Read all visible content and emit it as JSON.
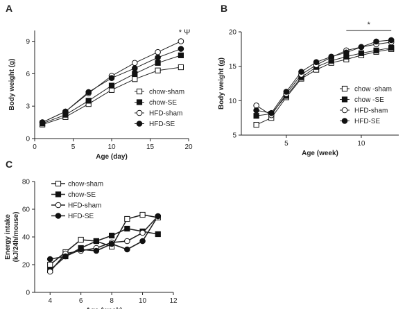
{
  "chart_data": [
    {
      "panel": "A",
      "type": "line",
      "xlabel": "Age (day)",
      "ylabel": "Body weight (g)",
      "xlim": [
        0,
        20
      ],
      "ylim": [
        0,
        10
      ],
      "xticks": [
        0,
        5,
        10,
        15,
        20
      ],
      "yticks": [
        0,
        3,
        6,
        9
      ],
      "legend_position": "lower-right",
      "annotation": "* Ψ",
      "x": [
        1,
        4,
        7,
        10,
        13,
        16,
        19
      ],
      "series": [
        {
          "name": "chow-sham",
          "marker": "open-square",
          "values": [
            1.3,
            2.0,
            3.2,
            4.5,
            5.5,
            6.3,
            6.6
          ]
        },
        {
          "name": "chow-SE",
          "marker": "filled-square",
          "values": [
            1.4,
            2.2,
            3.5,
            4.9,
            6.0,
            7.0,
            7.7
          ]
        },
        {
          "name": "HFD-sham",
          "marker": "open-circle",
          "values": [
            1.5,
            2.5,
            4.2,
            5.8,
            7.0,
            8.0,
            9.0
          ]
        },
        {
          "name": "HFD-SE",
          "marker": "filled-circle",
          "values": [
            1.5,
            2.5,
            4.3,
            5.6,
            6.5,
            7.5,
            8.3
          ]
        }
      ]
    },
    {
      "panel": "B",
      "type": "line",
      "xlabel": "Age (week)",
      "ylabel": "Body weight (g)",
      "xlim": [
        2,
        12.5
      ],
      "ylim": [
        5,
        20
      ],
      "xticks": [
        5,
        10
      ],
      "yticks": [
        5,
        10,
        15,
        20
      ],
      "legend_position": "lower-right",
      "annotation": "*",
      "annotation_span": [
        9,
        12
      ],
      "x": [
        3,
        4,
        5,
        6,
        7,
        8,
        9,
        10,
        11,
        12
      ],
      "series": [
        {
          "name": "chow -sham",
          "marker": "open-square",
          "values": [
            6.5,
            7.5,
            10.5,
            13.2,
            14.5,
            15.5,
            16.0,
            16.6,
            17.1,
            17.5
          ]
        },
        {
          "name": "chow -SE",
          "marker": "filled-square",
          "values": [
            7.8,
            8.1,
            10.7,
            13.4,
            14.9,
            15.8,
            16.4,
            16.9,
            17.3,
            17.7
          ]
        },
        {
          "name": "HFD-sham",
          "marker": "open-circle",
          "values": [
            9.3,
            7.9,
            11.0,
            13.8,
            15.2,
            16.3,
            17.3,
            17.8,
            18.2,
            18.5
          ]
        },
        {
          "name": "HFD-SE",
          "marker": "filled-circle",
          "values": [
            8.6,
            8.2,
            11.3,
            14.2,
            15.6,
            16.4,
            17.0,
            17.8,
            18.6,
            18.8
          ]
        }
      ]
    },
    {
      "panel": "C",
      "type": "line",
      "xlabel": "Age (week)",
      "ylabel": "Energy intake (kJ/24h/mouse)",
      "ylabel_lines": [
        "Energy intake",
        "(kJ/24h/mouse)"
      ],
      "xlim": [
        3,
        12
      ],
      "ylim": [
        0,
        80
      ],
      "xticks": [
        4,
        6,
        8,
        10,
        12
      ],
      "yticks": [
        0,
        20,
        40,
        60,
        80
      ],
      "legend_position": "upper-left",
      "x": [
        4,
        5,
        6,
        7,
        8,
        9,
        10,
        11
      ],
      "series": [
        {
          "name": "chow-sham",
          "marker": "open-square",
          "values": [
            20,
            29,
            38,
            37,
            33,
            53,
            56,
            54
          ]
        },
        {
          "name": "chow-SE",
          "marker": "filled-square",
          "values": [
            16,
            26,
            32,
            37,
            41,
            46,
            44,
            42
          ]
        },
        {
          "name": "HFD-sham",
          "marker": "open-circle",
          "values": [
            15,
            28,
            30,
            32,
            36,
            37,
            43,
            55
          ]
        },
        {
          "name": "HFD-SE",
          "marker": "filled-circle",
          "values": [
            24,
            26,
            31,
            30,
            35,
            31,
            37,
            55
          ]
        }
      ]
    }
  ]
}
